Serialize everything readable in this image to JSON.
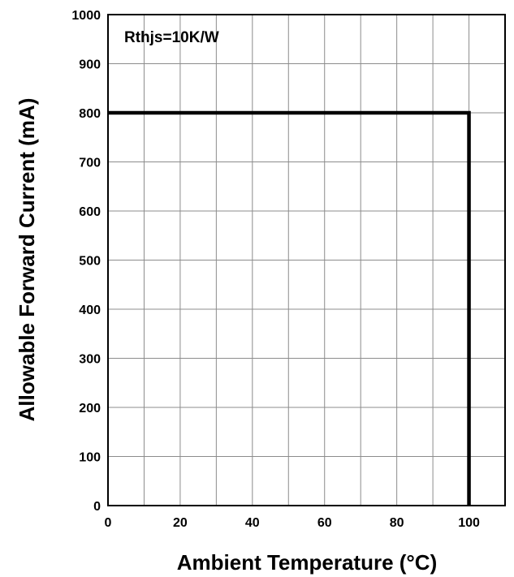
{
  "chart_data": {
    "type": "line",
    "xlabel": "Ambient Temperature (°C)",
    "ylabel": "Allowable Forward Current (mA)",
    "annotation": "Rthjs=10K/W",
    "xlim": [
      0,
      110
    ],
    "ylim": [
      0,
      1000
    ],
    "xticks": [
      0,
      20,
      40,
      60,
      80,
      100
    ],
    "xtick_labels": [
      "0",
      "20",
      "40",
      "60",
      "80",
      "100"
    ],
    "yticks": [
      0,
      100,
      200,
      300,
      400,
      500,
      600,
      700,
      800,
      900,
      1000
    ],
    "ytick_labels": [
      "0",
      "100",
      "200",
      "300",
      "400",
      "500",
      "600",
      "700",
      "800",
      "900",
      "1000"
    ],
    "grid": true,
    "grid_x_step": 10,
    "grid_y_step": 100,
    "series": [
      {
        "x": [
          0,
          100,
          100
        ],
        "y": [
          800,
          800,
          0
        ],
        "color": "#000000"
      }
    ]
  }
}
